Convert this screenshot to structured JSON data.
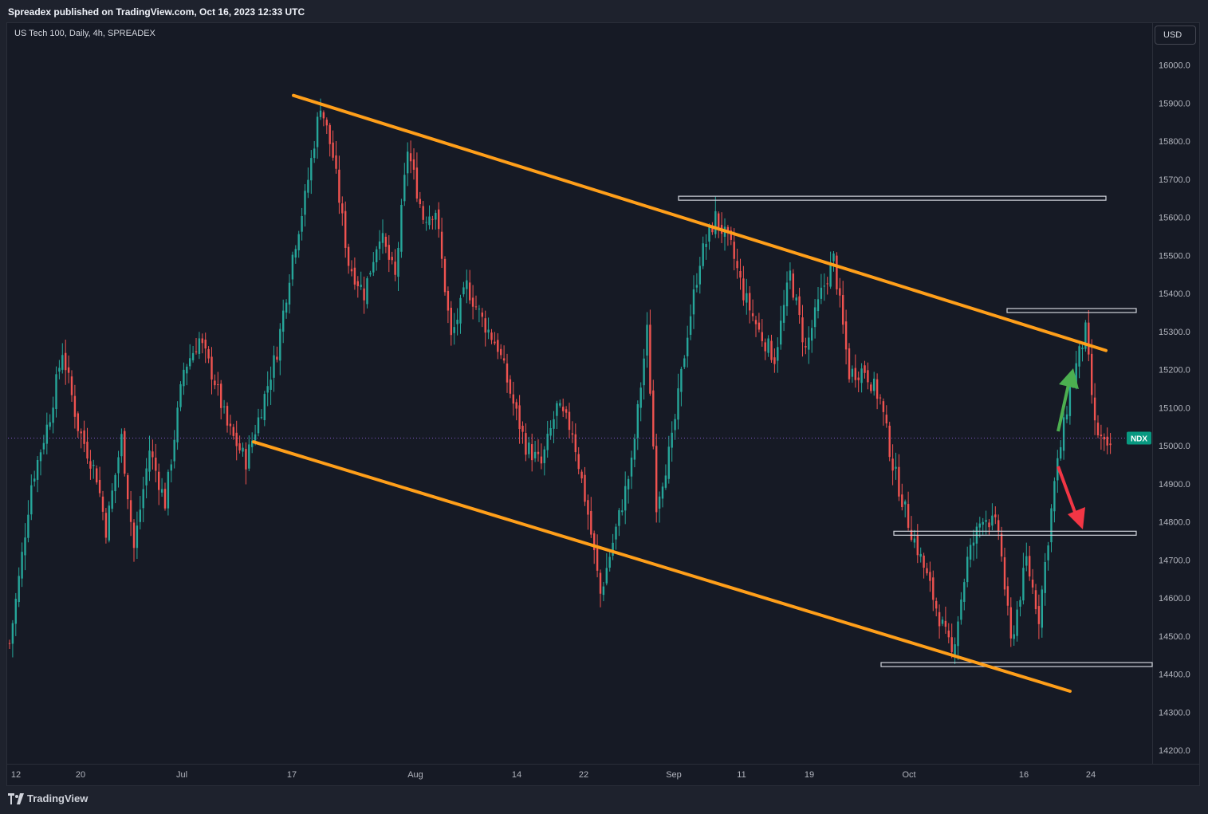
{
  "header": {
    "published": "Spreadex published on TradingView.com, Oct 16, 2023 12:33 UTC"
  },
  "symbol": {
    "info": "US Tech 100, Daily, 4h, SPREADEX"
  },
  "currency": "USD",
  "footer": {
    "brand": "TradingView"
  },
  "colors": {
    "up": "#26a69a",
    "down": "#ef5350",
    "trend": "#ff9f1a",
    "arrow_up": "#4caf50",
    "arrow_down": "#f23645",
    "tag": "#089981"
  },
  "chart_data": {
    "type": "candlestick",
    "title": "US Tech 100, Daily, 4h, SPREADEX",
    "ylim": [
      14150,
      16080
    ],
    "yticks": [
      "16000.0",
      "15900.0",
      "15800.0",
      "15700.0",
      "15600.0",
      "15500.0",
      "15400.0",
      "15300.0",
      "15200.0",
      "15100.0",
      "15000.0",
      "14900.0",
      "14800.0",
      "14700.0",
      "14600.0",
      "14500.0",
      "14400.0",
      "14300.0",
      "14200.0"
    ],
    "xticks": [
      "12",
      "20",
      "Jul",
      "17",
      "Aug",
      "14",
      "22",
      "Sep",
      "11",
      "19",
      "Oct",
      "16",
      "24"
    ],
    "current_price": 15020,
    "price_tag": "NDX",
    "trendlines": [
      {
        "name": "upper channel",
        "from": [
          "Jul 17",
          15920
        ],
        "to": [
          "Oct 24",
          15250
        ]
      },
      {
        "name": "lower channel",
        "from": [
          "Jul 11",
          15010
        ],
        "to": [
          "Oct 22",
          14355
        ]
      }
    ],
    "levels": [
      {
        "price": 15650,
        "from": "Sep 1",
        "to": "Oct 24"
      },
      {
        "price": 15355,
        "from": "Oct 13",
        "to": "Oct 26"
      },
      {
        "price": 14770,
        "from": "Sep 29",
        "to": "Oct 26"
      },
      {
        "price": 14425,
        "from": "Sep 28",
        "to": "Oct 29"
      }
    ],
    "path": [
      [
        0,
        14480
      ],
      [
        3,
        14650
      ],
      [
        7,
        14900
      ],
      [
        13,
        15080
      ],
      [
        17,
        15250
      ],
      [
        22,
        15050
      ],
      [
        28,
        14920
      ],
      [
        31,
        14780
      ],
      [
        36,
        15020
      ],
      [
        40,
        14730
      ],
      [
        45,
        14990
      ],
      [
        50,
        14850
      ],
      [
        56,
        15200
      ],
      [
        61,
        15280
      ],
      [
        66,
        15170
      ],
      [
        70,
        15050
      ],
      [
        76,
        14960
      ],
      [
        80,
        15070
      ],
      [
        86,
        15250
      ],
      [
        91,
        15500
      ],
      [
        95,
        15650
      ],
      [
        100,
        15900
      ],
      [
        104,
        15760
      ],
      [
        109,
        15480
      ],
      [
        114,
        15400
      ],
      [
        119,
        15560
      ],
      [
        124,
        15440
      ],
      [
        128,
        15780
      ],
      [
        133,
        15600
      ],
      [
        137,
        15620
      ],
      [
        142,
        15280
      ],
      [
        147,
        15420
      ],
      [
        152,
        15330
      ],
      [
        157,
        15260
      ],
      [
        162,
        15110
      ],
      [
        166,
        15000
      ],
      [
        171,
        14950
      ],
      [
        176,
        15100
      ],
      [
        181,
        15040
      ],
      [
        186,
        14820
      ],
      [
        190,
        14610
      ],
      [
        195,
        14780
      ],
      [
        200,
        14950
      ],
      [
        205,
        15300
      ],
      [
        208,
        14850
      ],
      [
        213,
        15010
      ],
      [
        218,
        15300
      ],
      [
        222,
        15490
      ],
      [
        227,
        15600
      ],
      [
        232,
        15520
      ],
      [
        236,
        15400
      ],
      [
        241,
        15300
      ],
      [
        246,
        15230
      ],
      [
        251,
        15450
      ],
      [
        256,
        15250
      ],
      [
        261,
        15400
      ],
      [
        265,
        15490
      ],
      [
        270,
        15190
      ],
      [
        275,
        15200
      ],
      [
        280,
        15120
      ],
      [
        284,
        14950
      ],
      [
        289,
        14800
      ],
      [
        294,
        14680
      ],
      [
        299,
        14550
      ],
      [
        303,
        14450
      ],
      [
        308,
        14700
      ],
      [
        313,
        14820
      ],
      [
        318,
        14780
      ],
      [
        322,
        14480
      ],
      [
        327,
        14700
      ],
      [
        331,
        14550
      ],
      [
        336,
        14900
      ],
      [
        341,
        15150
      ],
      [
        346,
        15300
      ],
      [
        349,
        15050
      ],
      [
        353,
        14980
      ],
      [
        354,
        15000
      ]
    ]
  }
}
